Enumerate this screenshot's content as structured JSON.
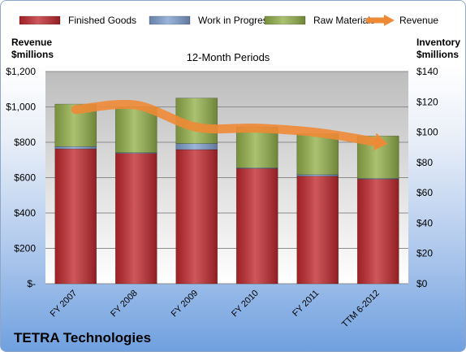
{
  "chart_data": {
    "type": "bar",
    "stacked": true,
    "title": "12-Month Periods",
    "company": "TETRA Technologies",
    "left_axis_title": [
      "Revenue",
      "$millions"
    ],
    "right_axis_title": [
      "Inventory",
      "$millions"
    ],
    "categories": [
      "FY 2007",
      "FY 2008",
      "FY 2009",
      "FY 2010",
      "FY 2011",
      "TTM 6-2012"
    ],
    "left_ticks": [
      "$-",
      "$200",
      "$400",
      "$600",
      "$800",
      "$1,000",
      "$1,200"
    ],
    "right_ticks": [
      "$0",
      "$20",
      "$40",
      "$60",
      "$80",
      "$100",
      "$120",
      "$140"
    ],
    "left_ylim": [
      0,
      1200
    ],
    "right_ylim": [
      0,
      140
    ],
    "series": [
      {
        "name": "Finished Goods",
        "axis": "right",
        "color": "#c0282d",
        "values": [
          89,
          86,
          88.5,
          76,
          71,
          69
        ]
      },
      {
        "name": "Work in Progress",
        "axis": "right",
        "color": "#7f9fcf",
        "values": [
          1.5,
          0.5,
          4,
          0.5,
          1,
          0.5
        ]
      },
      {
        "name": "Raw Materials",
        "axis": "right",
        "color": "#93b04a",
        "values": [
          28,
          30,
          30,
          27,
          27,
          28
        ]
      },
      {
        "name": "Revenue",
        "axis": "left",
        "type": "line",
        "color": "#ee8a35",
        "values": [
          985,
          1010,
          885,
          880,
          855,
          800
        ]
      }
    ],
    "legend_position": "top",
    "grid": true
  }
}
